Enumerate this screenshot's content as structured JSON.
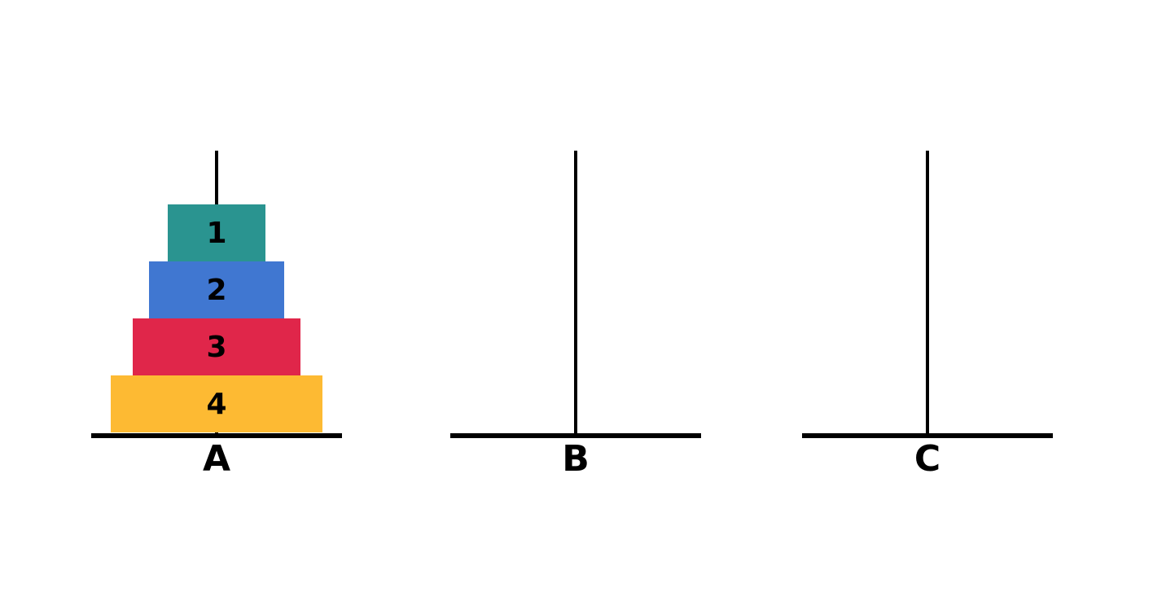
{
  "pegs": [
    {
      "id": "a",
      "label": "A",
      "disks": [
        4,
        3,
        2,
        1
      ]
    },
    {
      "id": "b",
      "label": "B",
      "disks": []
    },
    {
      "id": "c",
      "label": "C",
      "disks": []
    }
  ],
  "disks": {
    "1": {
      "label": "1",
      "color": "#2A9490"
    },
    "2": {
      "label": "2",
      "color": "#4077D1"
    },
    "3": {
      "label": "3",
      "color": "#E0264A"
    },
    "4": {
      "label": "4",
      "color": "#FDBA33"
    }
  }
}
